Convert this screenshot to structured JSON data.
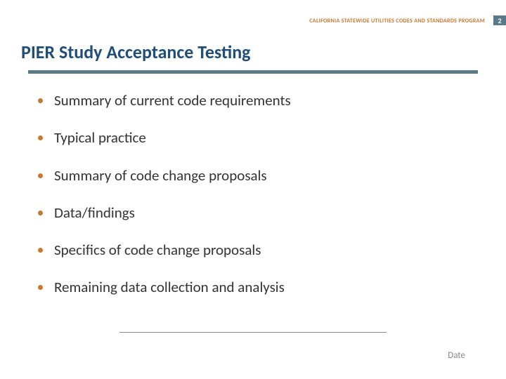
{
  "header": {
    "program_label": "CALIFORNIA STATEWIDE UTILITIES CODES AND STANDARDS PROGRAM",
    "page_number": "2"
  },
  "title": "PIER Study Acceptance Testing",
  "bullets": [
    "Summary of current code requirements",
    "Typical practice",
    "Summary of code change proposals",
    "Data/findings",
    "Specifics of code change proposals",
    "Remaining data collection and analysis"
  ],
  "footer": {
    "date_label": "Date"
  },
  "colors": {
    "accent_orange": "#c87830",
    "accent_blue": "#5a7a8a",
    "title_blue": "#1f4e79",
    "body_text": "#333333",
    "footer_text": "#888888",
    "background": "#ffffff"
  },
  "typography": {
    "title_fontsize": 26,
    "bullet_fontsize": 21,
    "header_label_fontsize": 8,
    "page_num_fontsize": 10,
    "date_fontsize": 13
  }
}
